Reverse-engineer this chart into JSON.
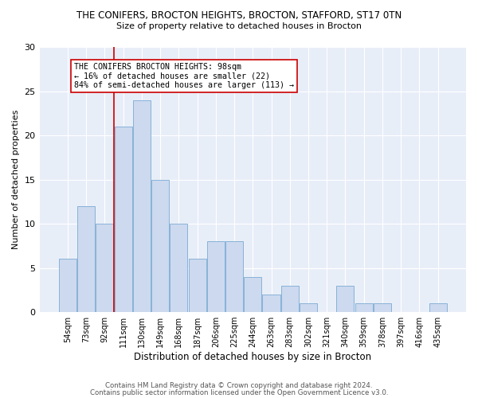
{
  "title_line1": "THE CONIFERS, BROCTON HEIGHTS, BROCTON, STAFFORD, ST17 0TN",
  "title_line2": "Size of property relative to detached houses in Brocton",
  "xlabel": "Distribution of detached houses by size in Brocton",
  "ylabel": "Number of detached properties",
  "bar_labels": [
    "54sqm",
    "73sqm",
    "92sqm",
    "111sqm",
    "130sqm",
    "149sqm",
    "168sqm",
    "187sqm",
    "206sqm",
    "225sqm",
    "244sqm",
    "263sqm",
    "283sqm",
    "302sqm",
    "321sqm",
    "340sqm",
    "359sqm",
    "378sqm",
    "397sqm",
    "416sqm",
    "435sqm"
  ],
  "bar_values": [
    6,
    12,
    10,
    21,
    24,
    15,
    10,
    6,
    8,
    8,
    4,
    2,
    3,
    1,
    0,
    3,
    1,
    1,
    0,
    0,
    1
  ],
  "bar_color": "#ccd9ee",
  "bar_edgecolor": "#7baad4",
  "vline_x": 2.5,
  "vline_color": "#cc0000",
  "annotation_text": "THE CONIFERS BROCTON HEIGHTS: 98sqm\n← 16% of detached houses are smaller (22)\n84% of semi-detached houses are larger (113) →",
  "annotation_box_edgecolor": "#cc0000",
  "ylim": [
    0,
    30
  ],
  "yticks": [
    0,
    5,
    10,
    15,
    20,
    25,
    30
  ],
  "bg_color": "#e8eef8",
  "grid_color": "#ffffff",
  "footer_line1": "Contains HM Land Registry data © Crown copyright and database right 2024.",
  "footer_line2": "Contains public sector information licensed under the Open Government Licence v3.0."
}
